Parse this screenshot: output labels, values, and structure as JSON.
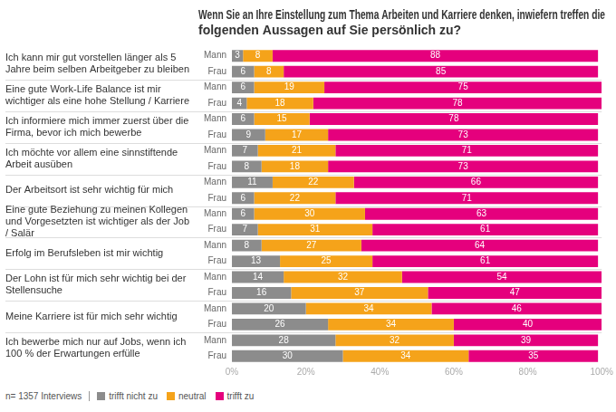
{
  "chart_data": {
    "type": "bar",
    "orientation": "horizontal",
    "stacked": true,
    "data_labels": true,
    "grid": false,
    "legend": "bottom",
    "title": "Wenn Sie an Ihre Einstellung zum Thema Arbeiten und Karriere denken, inwiefern treffen die folgenden Aussagen auf Sie persönlich zu?",
    "note": "n= 1357 Interviews",
    "categories": [
      "Ich kann mir gut vorstellen länger als 5 Jahre beim selben Arbeitgeber zu bleiben",
      "Eine gute Work-Life Balance ist mir wichtiger als eine hohe Stellung / Karriere",
      "Ich informiere mich immer zuerst über die Firma, bevor ich mich bewerbe",
      "Ich möchte vor allem eine sinnstiftende Arbeit ausüben",
      "Der Arbeitsort ist sehr wichtig für mich",
      "Eine gute Beziehung zu meinen Kollegen und Vorgesetzten ist wichtiger als der Job / Salär",
      "Erfolg im Berufsleben ist mir wichtig",
      "Der Lohn ist für mich sehr wichtig bei der Stellensuche",
      "Meine Karriere ist für mich sehr wichtig",
      "Ich bewerbe mich nur auf Jobs, wenn ich 100 % der Erwartungen erfülle"
    ],
    "subcategories": [
      "Mann",
      "Frau"
    ],
    "series": [
      {
        "name": "trifft nicht zu",
        "color": "#8c8c8c",
        "values": [
          [
            3,
            6
          ],
          [
            6,
            4
          ],
          [
            6,
            9
          ],
          [
            7,
            8
          ],
          [
            11,
            6
          ],
          [
            6,
            7
          ],
          [
            8,
            13
          ],
          [
            14,
            16
          ],
          [
            20,
            26
          ],
          [
            28,
            30
          ]
        ]
      },
      {
        "name": "neutral",
        "color": "#f5a31a",
        "values": [
          [
            8,
            8
          ],
          [
            19,
            18
          ],
          [
            15,
            17
          ],
          [
            21,
            18
          ],
          [
            22,
            22
          ],
          [
            30,
            31
          ],
          [
            27,
            25
          ],
          [
            32,
            37
          ],
          [
            34,
            34
          ],
          [
            32,
            34
          ]
        ]
      },
      {
        "name": "trifft zu",
        "color": "#e5007d",
        "values": [
          [
            88,
            85
          ],
          [
            75,
            78
          ],
          [
            78,
            73
          ],
          [
            71,
            73
          ],
          [
            66,
            71
          ],
          [
            63,
            61
          ],
          [
            64,
            61
          ],
          [
            54,
            47
          ],
          [
            46,
            40
          ],
          [
            39,
            35
          ]
        ]
      }
    ],
    "xlim": [
      0,
      100
    ],
    "xticks": [
      {
        "value": 0,
        "label": "0%"
      },
      {
        "value": 20,
        "label": "20%"
      },
      {
        "value": 40,
        "label": "40%"
      },
      {
        "value": 60,
        "label": "60%"
      },
      {
        "value": 80,
        "label": "80%"
      },
      {
        "value": 100,
        "label": "100%"
      }
    ]
  }
}
